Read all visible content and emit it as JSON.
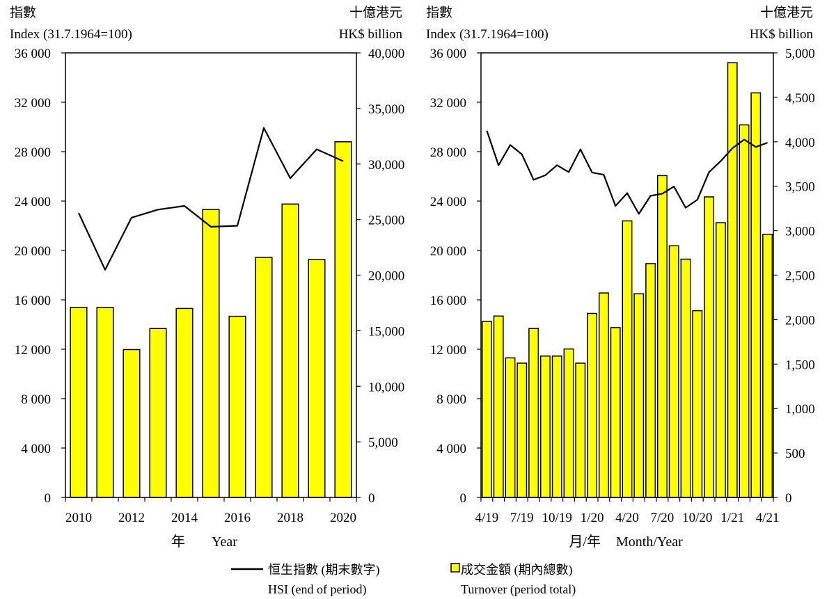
{
  "legend": {
    "hsi_zh": "恒生指數 (期末數字)",
    "hsi_en": "HSI (end of period)",
    "turnover_zh": "成交金額 (期內總數)",
    "turnover_en": "Turnover (period total)"
  },
  "colors": {
    "bar_fill": "#ffff00",
    "bar_stroke": "#000000",
    "line": "#000000"
  },
  "chart_data": [
    {
      "type": "bar",
      "left_title_zh": "指數",
      "left_title_en": "Index (31.7.1964=100)",
      "right_title_zh": "十億港元",
      "right_title_en": "HK$ billion",
      "xlabel_zh": "年",
      "xlabel_en": "Year",
      "categories": [
        "2010",
        "2011",
        "2012",
        "2013",
        "2014",
        "2015",
        "2016",
        "2017",
        "2018",
        "2019",
        "2020"
      ],
      "x_tick_labels": [
        "2010",
        "",
        "2012",
        "",
        "2014",
        "",
        "2016",
        "",
        "2018",
        "",
        "2020"
      ],
      "series": [
        {
          "name": "成交金額 (期內總數)",
          "axis": "right",
          "kind": "bar",
          "values": [
            17100,
            17100,
            13300,
            15200,
            17000,
            25900,
            16300,
            21600,
            26400,
            21400,
            32000
          ]
        },
        {
          "name": "恒生指數 (期末數字)",
          "axis": "left",
          "kind": "line",
          "values": [
            23036,
            18434,
            22657,
            23306,
            23605,
            21914,
            22001,
            29919,
            25846,
            28190,
            27231
          ]
        }
      ],
      "y_left": {
        "min": 0,
        "max": 36000,
        "step": 4000,
        "ticks": [
          "0",
          "4 000",
          "8 000",
          "12 000",
          "16 000",
          "20 000",
          "24 000",
          "28 000",
          "32 000",
          "36 000"
        ]
      },
      "y_right": {
        "min": 0,
        "max": 40000,
        "step": 5000,
        "ticks": [
          "0",
          "5,000",
          "10,000",
          "15,000",
          "20,000",
          "25,000",
          "30,000",
          "35,000",
          "40,000"
        ]
      }
    },
    {
      "type": "bar",
      "left_title_zh": "指數",
      "left_title_en": "Index (31.7.1964=100)",
      "right_title_zh": "十億港元",
      "right_title_en": "HK$ billion",
      "xlabel_zh": "月/年",
      "xlabel_en": "Month/Year",
      "categories": [
        "4/19",
        "5/19",
        "6/19",
        "7/19",
        "8/19",
        "9/19",
        "10/19",
        "11/19",
        "12/19",
        "1/20",
        "2/20",
        "3/20",
        "4/20",
        "5/20",
        "6/20",
        "7/20",
        "8/20",
        "9/20",
        "10/20",
        "11/20",
        "12/20",
        "1/21",
        "2/21",
        "3/21",
        "4/21"
      ],
      "x_tick_labels": [
        "4/19",
        "",
        "",
        "7/19",
        "",
        "",
        "10/19",
        "",
        "",
        "1/20",
        "",
        "",
        "4/20",
        "",
        "",
        "7/20",
        "",
        "",
        "10/20",
        "",
        "",
        "1/21",
        "",
        "",
        "4/21"
      ],
      "series": [
        {
          "name": "成交金額 (期內總數)",
          "axis": "right",
          "kind": "bar",
          "values": [
            1980,
            2040,
            1570,
            1510,
            1900,
            1590,
            1590,
            1670,
            1510,
            2070,
            2300,
            1910,
            3110,
            2290,
            2630,
            3620,
            2830,
            2680,
            2100,
            3380,
            3090,
            4890,
            4190,
            4550,
            2960
          ]
        },
        {
          "name": "恒生指數 (期末数字)",
          "axis": "left",
          "kind": "line",
          "values": [
            29699,
            26901,
            28543,
            27778,
            25725,
            26092,
            26907,
            26346,
            28190,
            26313,
            26130,
            23603,
            24644,
            22961,
            24427,
            24595,
            25177,
            23459,
            24107,
            26341,
            27231,
            28284,
            28980,
            28378,
            28725
          ]
        }
      ],
      "y_left": {
        "min": 0,
        "max": 36000,
        "step": 4000,
        "ticks": [
          "0",
          "4 000",
          "8 000",
          "12 000",
          "16 000",
          "20 000",
          "24 000",
          "28 000",
          "32 000",
          "36 000"
        ]
      },
      "y_right": {
        "min": 0,
        "max": 5000,
        "step": 500,
        "ticks": [
          "0",
          "500",
          "1,000",
          "1,500",
          "2,000",
          "2,500",
          "3,000",
          "3,500",
          "4,000",
          "4,500",
          "5,000"
        ]
      }
    }
  ]
}
